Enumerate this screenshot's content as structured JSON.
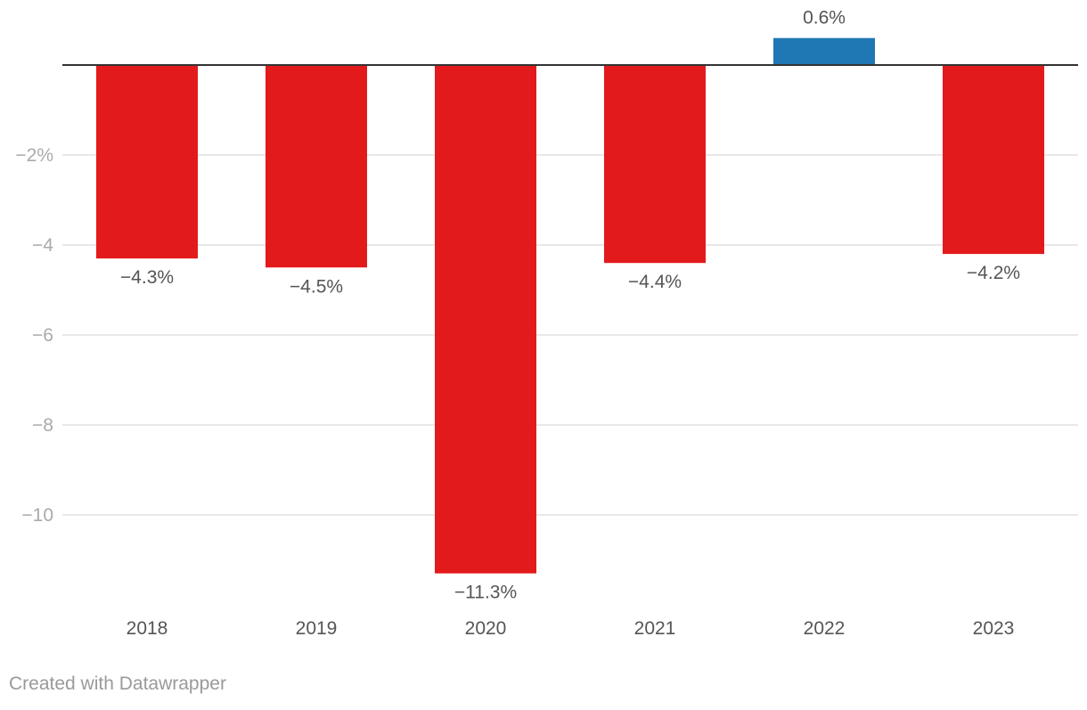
{
  "chart_data": {
    "type": "bar",
    "categories": [
      "2018",
      "2019",
      "2020",
      "2021",
      "2022",
      "2023"
    ],
    "values": [
      -4.3,
      -4.5,
      -11.3,
      -4.4,
      0.6,
      -4.2
    ],
    "value_labels": [
      "−4.3%",
      "−4.5%",
      "−11.3%",
      "−4.4%",
      "0.6%",
      "−4.2%"
    ],
    "y_ticks": [
      -2,
      -4,
      -6,
      -8,
      -10
    ],
    "y_tick_labels": [
      "−2%",
      "−4",
      "−6",
      "−8",
      "−10"
    ],
    "ylim": [
      -11.9,
      0.6
    ],
    "grid": true,
    "colors": {
      "negative": "#e31a1c",
      "positive": "#1f78b4",
      "gridline": "#e0e0e0",
      "zeroline": "#333333",
      "tick_label": "#aaaaaa",
      "value_label": "#555555",
      "category_label": "#555555"
    }
  },
  "footer": {
    "credit": "Created with Datawrapper"
  }
}
